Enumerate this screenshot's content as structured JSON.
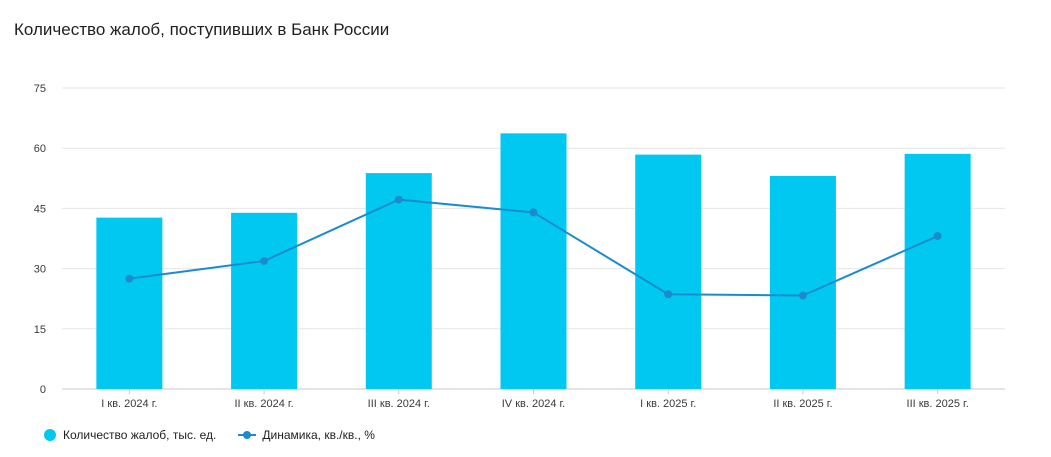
{
  "chart_data": {
    "type": "bar",
    "title": "Количество жалоб, поступивших в Банк России",
    "categories": [
      "I кв. 2024 г.",
      "II кв. 2024 г.",
      "III кв. 2024 г.",
      "IV кв. 2024 г.",
      "I кв. 2025 г.",
      "II кв. 2025 г.",
      "III кв. 2025 г."
    ],
    "series": [
      {
        "name": "Количество жалоб, тыс. ед.",
        "type": "bar",
        "color": "#00c8f0",
        "values": [
          42.7,
          43.9,
          53.8,
          63.7,
          58.4,
          53.1,
          58.6
        ]
      },
      {
        "name": "Динамика, кв./кв., %",
        "type": "line",
        "color": "#1a8ccd",
        "values": [
          27.5,
          31.9,
          47.2,
          44.0,
          23.6,
          23.3,
          38.1
        ]
      }
    ],
    "yticks": [
      0,
      15,
      30,
      45,
      60,
      75
    ],
    "ylim": [
      0,
      75
    ],
    "grid": true,
    "legend": "bottom-left"
  }
}
